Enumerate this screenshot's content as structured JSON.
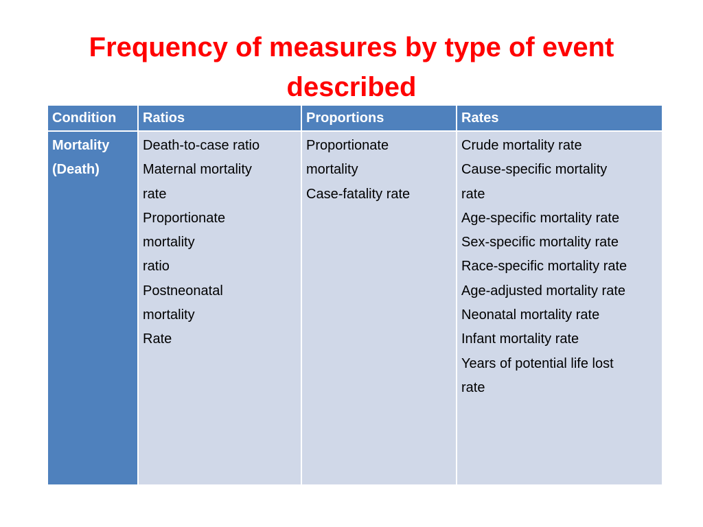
{
  "title": "Frequency of measures by type of event described",
  "table": {
    "headers": {
      "condition": "Condition",
      "ratios": "Ratios",
      "proportions": "Proportions",
      "rates": "Rates"
    },
    "row": {
      "condition": [
        "Mortality",
        "(Death)"
      ],
      "ratios": [
        "Death-to-case ratio",
        "Maternal mortality",
        "rate",
        "Proportionate",
        "mortality",
        "ratio",
        "Postneonatal",
        "mortality",
        "Rate"
      ],
      "proportions": [
        "Proportionate",
        "mortality",
        "Case-fatality rate"
      ],
      "rates": [
        "Crude mortality rate",
        "Cause-specific mortality",
        "rate",
        "Age-specific mortality rate",
        "Sex-specific mortality rate",
        "Race-specific mortality rate",
        "Age-adjusted mortality rate",
        "Neonatal mortality rate",
        "Infant mortality rate",
        "Years of potential life lost",
        "rate"
      ]
    }
  },
  "colors": {
    "title": "#ff0000",
    "header_fill": "#4f81bd",
    "body_fill": "#d0d8e8"
  }
}
